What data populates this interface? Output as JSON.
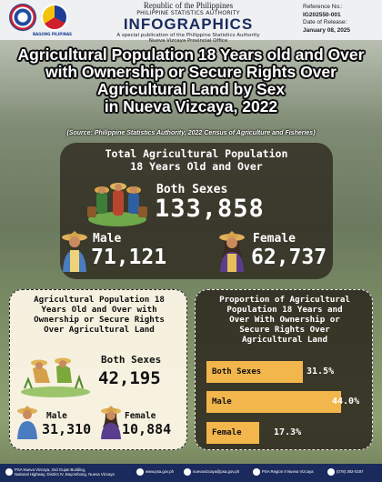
{
  "header": {
    "republic": "Republic of the Philippines",
    "agency": "PHILIPPINE STATISTICS AUTHORITY",
    "title": "INFOGRAPHICS",
    "subtitle1": "A special publication of the Philippine Statistics Authority",
    "subtitle2": "Nueva Vizcaya Provincial Office",
    "ref_label": "Reference No.:",
    "ref_value": "IG202550-001",
    "release_label": "Date of Release:",
    "release_value": "January 08, 2025",
    "bp_caption": "BAGONG PILIPINAS"
  },
  "title": {
    "line1": "Agricultural Population 18 Years old and Over",
    "line2": "with Ownership or Secure Rights Over",
    "line3": "Agricultural Land by Sex",
    "line4": "in Nueva Vizcaya, 2022",
    "source": "(Source: Philippine Statistics Authority, 2022 Census of Agriculture and Fisheries)"
  },
  "total": {
    "title1": "Total Agricultural Population",
    "title2": "18 Years Old and Over",
    "both_label": "Both Sexes",
    "both_value": "133,858",
    "male_label": "Male",
    "male_value": "71,121",
    "female_label": "Female",
    "female_value": "62,737"
  },
  "ownership": {
    "title1": "Agricultural Population 18",
    "title2": "Years Old and Over with",
    "title3": "Ownership or Secure Rights",
    "title4": "Over Agricultural Land",
    "both_label": "Both Sexes",
    "both_value": "42,195",
    "male_label": "Male",
    "male_value": "31,310",
    "female_label": "Female",
    "female_value": "10,884"
  },
  "proportion": {
    "title1": "Proportion of Agricultural",
    "title2": "Population 18 Years and",
    "title3": "Over With Ownership or",
    "title4": "Secure Rights Over",
    "title5": "Agricultural Land",
    "bars": [
      {
        "label": "Both Sexes",
        "value": 31.5,
        "text": "31.5%"
      },
      {
        "label": "Male",
        "value": 44.0,
        "text": "44.0%"
      },
      {
        "label": "Female",
        "value": 17.3,
        "text": "17.3%"
      }
    ],
    "bar_color": "#f3b64c"
  },
  "footer": {
    "address1": "PSA Nueva Vizcaya, 2nd Gujan Building,",
    "address2": "National Highway, District IV, Bayombong, Nueva Vizcaya",
    "website": "www.psa.gov.ph",
    "email": "nuevavizcaya@psa.gov.ph",
    "facebook": "PSA Region II Nueva Vizcaya",
    "phone": "(078) 392-0197"
  },
  "colors": {
    "header_title": "#1a2a5e",
    "footer_bg": "#1b2a5c",
    "accent": "#f3b64c"
  }
}
